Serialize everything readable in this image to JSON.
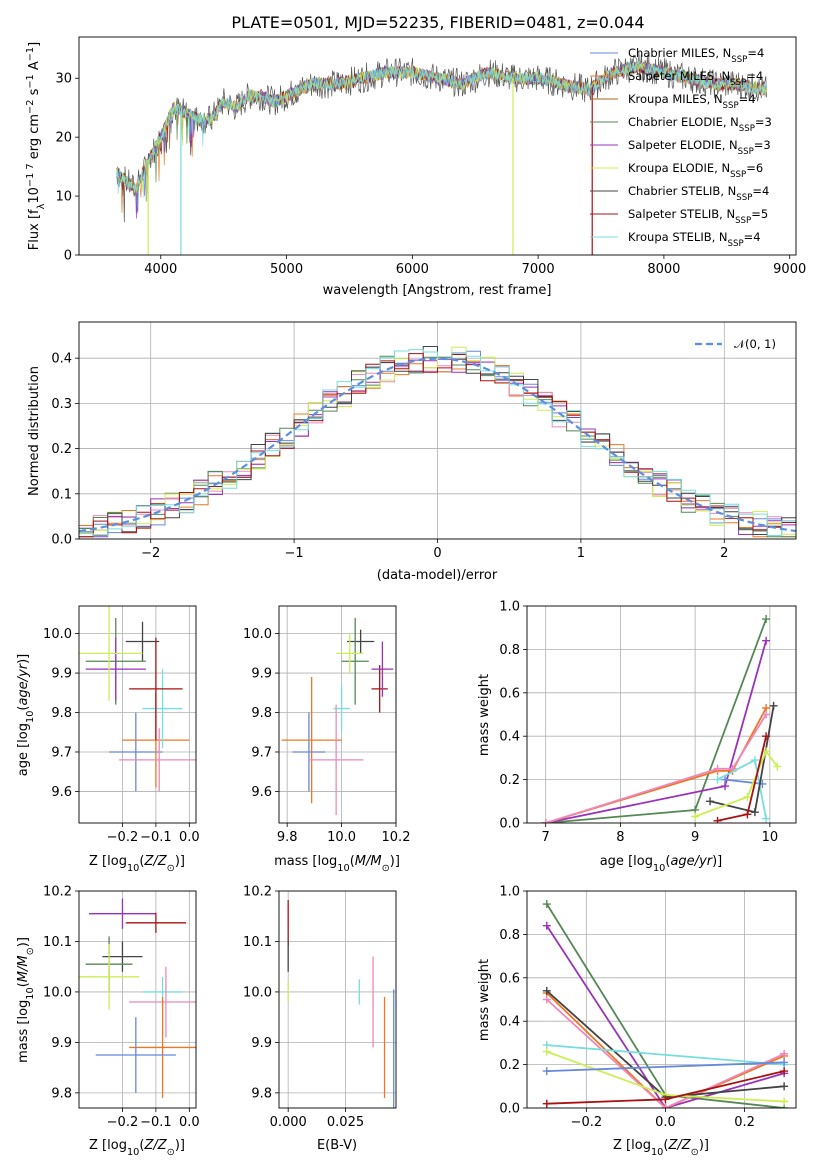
{
  "colors": {
    "Chabrier MILES": "#6688dd",
    "Salpeter MILES": "#ee7722",
    "Kroupa MILES": "#aa6622",
    "Chabrier ELODIE": "#558855",
    "Salpeter ELODIE": "#9933bb",
    "Kroupa ELODIE": "#ccee55",
    "Chabrier STELIB": "#444444",
    "Salpeter STELIB": "#aa1111",
    "Kroupa STELIB": "#77dddd",
    "pink": "#ee88bb"
  },
  "chart_data": [
    {
      "type": "line",
      "title": "PLATE=0501, MJD=52235, FIBERID=0481, z=0.044",
      "xlabel": "wavelength [Angstrom, rest frame]",
      "ylabel": "Flux [fλ10⁻¹⁷ erg cm⁻² s⁻¹ A⁻¹]",
      "xlim": [
        3350,
        9050
      ],
      "ylim": [
        0,
        37
      ],
      "xticks": [
        "4000",
        "5000",
        "6000",
        "7000",
        "8000",
        "9000"
      ],
      "yticks": [
        "0",
        "10",
        "20",
        "30"
      ],
      "legend_position": "right",
      "legend": [
        {
          "model": "Chabrier MILES",
          "n": "4"
        },
        {
          "model": "Salpeter MILES",
          "n": "4"
        },
        {
          "model": "Kroupa MILES",
          "n": "4"
        },
        {
          "model": "Chabrier ELODIE",
          "n": "3"
        },
        {
          "model": "Salpeter ELODIE",
          "n": "3"
        },
        {
          "model": "Kroupa ELODIE",
          "n": "6"
        },
        {
          "model": "Chabrier STELIB",
          "n": "4"
        },
        {
          "model": "Salpeter STELIB",
          "n": "5"
        },
        {
          "model": "Kroupa STELIB",
          "n": "4"
        }
      ],
      "nssp_label": "N",
      "nssp_sub": "SSP",
      "spectrum_envelope": {
        "x": [
          3650,
          3700,
          3800,
          3900,
          4000,
          4100,
          4200,
          4300,
          4400,
          4500,
          4600,
          4700,
          4800,
          4900,
          5000,
          5200,
          5400,
          5600,
          5800,
          6000,
          6200,
          6400,
          6600,
          6800,
          7000,
          7200,
          7400,
          7600,
          7800,
          8000,
          8200,
          8400,
          8600,
          8800
        ],
        "y": [
          14,
          13,
          11,
          16,
          20,
          25,
          24,
          23,
          23,
          26,
          25,
          27,
          27,
          26,
          27,
          29,
          29,
          30,
          31,
          31,
          30,
          29,
          31,
          30,
          30,
          29,
          28,
          31,
          32,
          31,
          30,
          29,
          29,
          28
        ]
      },
      "model_cutoffs": [
        {
          "model": "Kroupa ELODIE",
          "x": 3900
        },
        {
          "model": "Kroupa STELIB",
          "x": 4160
        },
        {
          "model": "Kroupa ELODIE",
          "x": 6800
        },
        {
          "model": "Salpeter STELIB",
          "x": 7430
        }
      ]
    },
    {
      "type": "line",
      "xlabel": "(data-model)/error",
      "ylabel": "Normed distribution",
      "xlim": [
        -2.5,
        2.5
      ],
      "ylim": [
        0,
        0.48
      ],
      "xticks": [
        "−2",
        "−1",
        "0",
        "1",
        "2"
      ],
      "yticks": [
        "0.0",
        "0.1",
        "0.2",
        "0.3",
        "0.4"
      ],
      "legend": "𝒩(0, 1)",
      "series": [
        {
          "name": "𝒩(0, 1)",
          "x": [
            -2.5,
            -2,
            -1.5,
            -1,
            -0.5,
            0,
            0.5,
            1,
            1.5,
            2,
            2.5
          ],
          "y": [
            0.0175,
            0.054,
            0.1295,
            0.242,
            0.352,
            0.399,
            0.352,
            0.242,
            0.1295,
            0.054,
            0.0175
          ]
        }
      ],
      "histogram_bin_width": 0.1,
      "histogram_count": 9
    },
    {
      "type": "scatter",
      "xlabel": "Z [log₁₀(Z/Z⊙)]",
      "ylabel": "age  [log₁₀(age/yr)]",
      "xlim": [
        -0.33,
        0.02
      ],
      "ylim": [
        9.52,
        10.07
      ],
      "xticks": [
        "−0.2",
        "−0.1",
        "0.0"
      ],
      "yticks": [
        "9.6",
        "9.7",
        "9.8",
        "9.9",
        "10.0"
      ],
      "points": [
        {
          "model": "Chabrier MILES",
          "x": -0.16,
          "y": 9.7,
          "xerr": 0.08,
          "yerr": 0.1
        },
        {
          "model": "Salpeter MILES",
          "x": -0.1,
          "y": 9.73,
          "xerr": 0.1,
          "yerr": 0.12
        },
        {
          "model": "pink",
          "x": -0.09,
          "y": 9.68,
          "xerr": 0.12,
          "yerr": 0.08
        },
        {
          "model": "Kroupa STELIB",
          "x": -0.08,
          "y": 9.81,
          "xerr": 0.06,
          "yerr": 0.1
        },
        {
          "model": "Salpeter STELIB",
          "x": -0.1,
          "y": 9.86,
          "xerr": 0.08,
          "yerr": 0.13
        },
        {
          "model": "Chabrier STELIB",
          "x": -0.14,
          "y": 9.98,
          "xerr": 0.05,
          "yerr": 0.05
        },
        {
          "model": "Chabrier ELODIE",
          "x": -0.22,
          "y": 9.93,
          "xerr": 0.09,
          "yerr": 0.11
        },
        {
          "model": "Salpeter ELODIE",
          "x": -0.22,
          "y": 9.91,
          "xerr": 0.09,
          "yerr": 0.08
        },
        {
          "model": "Kroupa ELODIE",
          "x": -0.24,
          "y": 9.95,
          "xerr": 0.1,
          "yerr": 0.12
        }
      ]
    },
    {
      "type": "scatter",
      "xlabel": "mass [log₁₀(M/M⊙)]",
      "xlim": [
        9.77,
        10.2
      ],
      "ylim": [
        9.52,
        10.07
      ],
      "xticks": [
        "9.8",
        "10.0",
        "10.2"
      ],
      "yticks": [
        "9.6",
        "9.7",
        "9.8",
        "9.9",
        "10.0"
      ],
      "points": [
        {
          "model": "Chabrier MILES",
          "x": 9.88,
          "y": 9.7,
          "xerr": 0.06,
          "yerr": 0.1
        },
        {
          "model": "Salpeter MILES",
          "x": 9.89,
          "y": 9.73,
          "xerr": 0.11,
          "yerr": 0.16
        },
        {
          "model": "pink",
          "x": 9.98,
          "y": 9.68,
          "xerr": 0.1,
          "yerr": 0.14
        },
        {
          "model": "Kroupa STELIB",
          "x": 10.0,
          "y": 9.81,
          "xerr": 0.03,
          "yerr": 0.06
        },
        {
          "model": "Salpeter STELIB",
          "x": 10.14,
          "y": 9.86,
          "xerr": 0.03,
          "yerr": 0.06
        },
        {
          "model": "Chabrier STELIB",
          "x": 10.07,
          "y": 9.98,
          "xerr": 0.05,
          "yerr": 0.03
        },
        {
          "model": "Chabrier ELODIE",
          "x": 10.05,
          "y": 9.93,
          "xerr": 0.05,
          "yerr": 0.11
        },
        {
          "model": "Salpeter ELODIE",
          "x": 10.15,
          "y": 9.91,
          "xerr": 0.04,
          "yerr": 0.07
        },
        {
          "model": "Kroupa ELODIE",
          "x": 10.03,
          "y": 9.95,
          "xerr": 0.05,
          "yerr": 0.05
        }
      ]
    },
    {
      "type": "line",
      "xlabel": "age  [log₁₀(age/yr)]",
      "ylabel": "mass weight",
      "xlim": [
        6.75,
        10.35
      ],
      "ylim": [
        0,
        1.0
      ],
      "xticks": [
        "7",
        "8",
        "9",
        "10"
      ],
      "yticks": [
        "0.0",
        "0.2",
        "0.4",
        "0.6",
        "0.8",
        "1.0"
      ],
      "series": [
        {
          "model": "Chabrier ELODIE",
          "x": [
            7.0,
            9.0,
            9.95
          ],
          "y": [
            0.0,
            0.06,
            0.94
          ]
        },
        {
          "model": "Salpeter ELODIE",
          "x": [
            7.0,
            9.4,
            9.95
          ],
          "y": [
            0.0,
            0.17,
            0.84
          ]
        },
        {
          "model": "Salpeter MILES",
          "x": [
            7.0,
            9.3,
            9.5,
            9.95
          ],
          "y": [
            0.0,
            0.24,
            0.24,
            0.53
          ]
        },
        {
          "model": "pink",
          "x": [
            7.0,
            9.3,
            9.5,
            9.95
          ],
          "y": [
            0.0,
            0.25,
            0.25,
            0.5
          ]
        },
        {
          "model": "Chabrier MILES",
          "x": [
            9.4,
            9.9
          ],
          "y": [
            0.2,
            0.18
          ]
        },
        {
          "model": "Kroupa STELIB",
          "x": [
            9.3,
            9.8,
            9.95
          ],
          "y": [
            0.2,
            0.29,
            0.02
          ]
        },
        {
          "model": "Chabrier STELIB",
          "x": [
            9.2,
            9.8,
            10.05
          ],
          "y": [
            0.1,
            0.05,
            0.54
          ]
        },
        {
          "model": "Kroupa ELODIE",
          "x": [
            9.0,
            9.7,
            9.95,
            10.1
          ],
          "y": [
            0.03,
            0.12,
            0.33,
            0.26
          ]
        },
        {
          "model": "Salpeter STELIB",
          "x": [
            9.3,
            9.7,
            9.95
          ],
          "y": [
            0.01,
            0.04,
            0.4
          ]
        }
      ]
    },
    {
      "type": "scatter",
      "xlabel": "Z [log₁₀(Z/Z⊙)]",
      "ylabel": "mass [log₁₀(M/M⊙)]",
      "xlim": [
        -0.33,
        0.02
      ],
      "ylim": [
        9.77,
        10.2
      ],
      "xticks": [
        "−0.2",
        "−0.1",
        "0.0"
      ],
      "yticks": [
        "9.8",
        "9.9",
        "10.0",
        "10.1",
        "10.2"
      ],
      "points": [
        {
          "model": "Salpeter ELODIE",
          "x": -0.2,
          "y": 10.155,
          "xerr": 0.1,
          "yerr": 0.03
        },
        {
          "model": "Salpeter STELIB",
          "x": -0.1,
          "y": 10.137,
          "xerr": 0.09,
          "yerr": 0.02
        },
        {
          "model": "Chabrier STELIB",
          "x": -0.2,
          "y": 10.07,
          "xerr": 0.06,
          "yerr": 0.03
        },
        {
          "model": "Chabrier ELODIE",
          "x": -0.24,
          "y": 10.055,
          "xerr": 0.07,
          "yerr": 0.055
        },
        {
          "model": "Kroupa ELODIE",
          "x": -0.24,
          "y": 10.03,
          "xerr": 0.09,
          "yerr": 0.065
        },
        {
          "model": "Kroupa STELIB",
          "x": -0.08,
          "y": 10.0,
          "xerr": 0.06,
          "yerr": 0.03
        },
        {
          "model": "pink",
          "x": -0.07,
          "y": 9.98,
          "xerr": 0.11,
          "yerr": 0.07
        },
        {
          "model": "Salpeter MILES",
          "x": -0.08,
          "y": 9.89,
          "xerr": 0.1,
          "yerr": 0.1
        },
        {
          "model": "Chabrier MILES",
          "x": -0.16,
          "y": 9.875,
          "xerr": 0.12,
          "yerr": 0.075
        }
      ]
    },
    {
      "type": "scatter",
      "xlabel": "E(B-V)",
      "xlim": [
        -0.004,
        0.047
      ],
      "ylim": [
        9.77,
        10.2
      ],
      "xticks": [
        "0.000",
        "0.025"
      ],
      "yticks": [
        "9.8",
        "9.9",
        "10.0",
        "10.1",
        "10.2"
      ],
      "points": [
        {
          "model": "Salpeter STELIB",
          "x": 0.0,
          "y": 10.137,
          "yerr": 0.045
        },
        {
          "model": "Kroupa ELODIE",
          "x": 0.0,
          "y": 10.0,
          "yerr": 0.02
        },
        {
          "model": "Chabrier STELIB",
          "x": 0.0,
          "y": 10.07,
          "yerr": 0.03
        },
        {
          "model": "Kroupa STELIB",
          "x": 0.031,
          "y": 10.0,
          "yerr": 0.025
        },
        {
          "model": "pink",
          "x": 0.037,
          "y": 9.98,
          "yerr": 0.09
        },
        {
          "model": "Salpeter MILES",
          "x": 0.042,
          "y": 9.89,
          "yerr": 0.1
        },
        {
          "model": "Chabrier MILES",
          "x": 0.046,
          "y": 9.875,
          "yerr": 0.13
        }
      ]
    },
    {
      "type": "line",
      "xlabel": "Z [log₁₀(Z/Z⊙)]",
      "ylabel": "mass weight",
      "xlim": [
        -0.35,
        0.33
      ],
      "ylim": [
        0,
        1.0
      ],
      "xticks": [
        "−0.2",
        "0.0",
        "0.2"
      ],
      "yticks": [
        "0.0",
        "0.2",
        "0.4",
        "0.6",
        "0.8",
        "1.0"
      ],
      "series": [
        {
          "model": "Chabrier ELODIE",
          "x": [
            -0.3,
            0.0,
            0.3
          ],
          "y": [
            0.94,
            0.06,
            0.0
          ]
        },
        {
          "model": "Salpeter ELODIE",
          "x": [
            -0.3,
            0.0,
            0.3
          ],
          "y": [
            0.84,
            0.0,
            0.16
          ]
        },
        {
          "model": "Salpeter MILES",
          "x": [
            -0.3,
            0.0,
            0.3
          ],
          "y": [
            0.53,
            0.0,
            0.24
          ]
        },
        {
          "model": "pink",
          "x": [
            -0.3,
            0.0,
            0.3
          ],
          "y": [
            0.5,
            0.0,
            0.25
          ]
        },
        {
          "model": "Chabrier STELIB",
          "x": [
            -0.3,
            0.0,
            0.3
          ],
          "y": [
            0.54,
            0.05,
            0.1
          ]
        },
        {
          "model": "Kroupa STELIB",
          "x": [
            -0.3,
            0.3
          ],
          "y": [
            0.29,
            0.2
          ]
        },
        {
          "model": "Kroupa ELODIE",
          "x": [
            -0.3,
            0.0,
            0.3
          ],
          "y": [
            0.26,
            0.06,
            0.03
          ]
        },
        {
          "model": "Chabrier MILES",
          "x": [
            -0.3,
            0.3
          ],
          "y": [
            0.17,
            0.21
          ]
        },
        {
          "model": "Salpeter STELIB",
          "x": [
            -0.3,
            0.0,
            0.3
          ],
          "y": [
            0.02,
            0.04,
            0.17
          ]
        }
      ]
    }
  ]
}
